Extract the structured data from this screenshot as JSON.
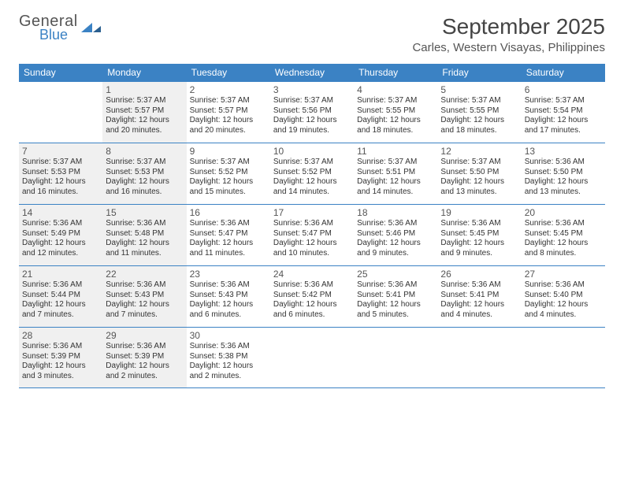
{
  "brand": {
    "line1": "General",
    "line2": "Blue"
  },
  "title": "September 2025",
  "location": "Carles, Western Visayas, Philippines",
  "colors": {
    "header_bg": "#3b82c4",
    "header_text": "#ffffff",
    "border": "#3b82c4",
    "shaded_cell": "#f0f0f0",
    "text": "#333333",
    "brand_blue": "#3b82c4"
  },
  "weekdays": [
    "Sunday",
    "Monday",
    "Tuesday",
    "Wednesday",
    "Thursday",
    "Friday",
    "Saturday"
  ],
  "start_offset": 1,
  "days_in_month": 30,
  "shaded_days": [
    1,
    7,
    8,
    14,
    15,
    21,
    22,
    28,
    29
  ],
  "days": {
    "1": {
      "sunrise": "5:37 AM",
      "sunset": "5:57 PM",
      "daylight": "12 hours and 20 minutes."
    },
    "2": {
      "sunrise": "5:37 AM",
      "sunset": "5:57 PM",
      "daylight": "12 hours and 20 minutes."
    },
    "3": {
      "sunrise": "5:37 AM",
      "sunset": "5:56 PM",
      "daylight": "12 hours and 19 minutes."
    },
    "4": {
      "sunrise": "5:37 AM",
      "sunset": "5:55 PM",
      "daylight": "12 hours and 18 minutes."
    },
    "5": {
      "sunrise": "5:37 AM",
      "sunset": "5:55 PM",
      "daylight": "12 hours and 18 minutes."
    },
    "6": {
      "sunrise": "5:37 AM",
      "sunset": "5:54 PM",
      "daylight": "12 hours and 17 minutes."
    },
    "7": {
      "sunrise": "5:37 AM",
      "sunset": "5:53 PM",
      "daylight": "12 hours and 16 minutes."
    },
    "8": {
      "sunrise": "5:37 AM",
      "sunset": "5:53 PM",
      "daylight": "12 hours and 16 minutes."
    },
    "9": {
      "sunrise": "5:37 AM",
      "sunset": "5:52 PM",
      "daylight": "12 hours and 15 minutes."
    },
    "10": {
      "sunrise": "5:37 AM",
      "sunset": "5:52 PM",
      "daylight": "12 hours and 14 minutes."
    },
    "11": {
      "sunrise": "5:37 AM",
      "sunset": "5:51 PM",
      "daylight": "12 hours and 14 minutes."
    },
    "12": {
      "sunrise": "5:37 AM",
      "sunset": "5:50 PM",
      "daylight": "12 hours and 13 minutes."
    },
    "13": {
      "sunrise": "5:36 AM",
      "sunset": "5:50 PM",
      "daylight": "12 hours and 13 minutes."
    },
    "14": {
      "sunrise": "5:36 AM",
      "sunset": "5:49 PM",
      "daylight": "12 hours and 12 minutes."
    },
    "15": {
      "sunrise": "5:36 AM",
      "sunset": "5:48 PM",
      "daylight": "12 hours and 11 minutes."
    },
    "16": {
      "sunrise": "5:36 AM",
      "sunset": "5:47 PM",
      "daylight": "12 hours and 11 minutes."
    },
    "17": {
      "sunrise": "5:36 AM",
      "sunset": "5:47 PM",
      "daylight": "12 hours and 10 minutes."
    },
    "18": {
      "sunrise": "5:36 AM",
      "sunset": "5:46 PM",
      "daylight": "12 hours and 9 minutes."
    },
    "19": {
      "sunrise": "5:36 AM",
      "sunset": "5:45 PM",
      "daylight": "12 hours and 9 minutes."
    },
    "20": {
      "sunrise": "5:36 AM",
      "sunset": "5:45 PM",
      "daylight": "12 hours and 8 minutes."
    },
    "21": {
      "sunrise": "5:36 AM",
      "sunset": "5:44 PM",
      "daylight": "12 hours and 7 minutes."
    },
    "22": {
      "sunrise": "5:36 AM",
      "sunset": "5:43 PM",
      "daylight": "12 hours and 7 minutes."
    },
    "23": {
      "sunrise": "5:36 AM",
      "sunset": "5:43 PM",
      "daylight": "12 hours and 6 minutes."
    },
    "24": {
      "sunrise": "5:36 AM",
      "sunset": "5:42 PM",
      "daylight": "12 hours and 6 minutes."
    },
    "25": {
      "sunrise": "5:36 AM",
      "sunset": "5:41 PM",
      "daylight": "12 hours and 5 minutes."
    },
    "26": {
      "sunrise": "5:36 AM",
      "sunset": "5:41 PM",
      "daylight": "12 hours and 4 minutes."
    },
    "27": {
      "sunrise": "5:36 AM",
      "sunset": "5:40 PM",
      "daylight": "12 hours and 4 minutes."
    },
    "28": {
      "sunrise": "5:36 AM",
      "sunset": "5:39 PM",
      "daylight": "12 hours and 3 minutes."
    },
    "29": {
      "sunrise": "5:36 AM",
      "sunset": "5:39 PM",
      "daylight": "12 hours and 2 minutes."
    },
    "30": {
      "sunrise": "5:36 AM",
      "sunset": "5:38 PM",
      "daylight": "12 hours and 2 minutes."
    }
  },
  "labels": {
    "sunrise_prefix": "Sunrise: ",
    "sunset_prefix": "Sunset: ",
    "daylight_prefix": "Daylight: "
  }
}
